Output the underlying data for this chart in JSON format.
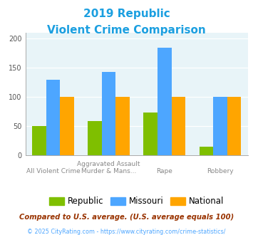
{
  "title_line1": "2019 Republic",
  "title_line2": "Violent Crime Comparison",
  "title_color": "#1B9FE0",
  "cat_labels_top": [
    "",
    "Aggravated Assault",
    "",
    ""
  ],
  "cat_labels_bot": [
    "All Violent Crime",
    "Murder & Mans...",
    "Rape",
    "Robbery"
  ],
  "republic_values": [
    50,
    59,
    73,
    15
  ],
  "missouri_values": [
    130,
    143,
    185,
    100
  ],
  "national_values": [
    100,
    100,
    100,
    100
  ],
  "republic_color": "#7FBF00",
  "missouri_color": "#4DA6FF",
  "national_color": "#FFA500",
  "ylim": [
    0,
    210
  ],
  "yticks": [
    0,
    50,
    100,
    150,
    200
  ],
  "plot_bg_color": "#E8F4F8",
  "fig_bg_color": "#FFFFFF",
  "legend_labels": [
    "Republic",
    "Missouri",
    "National"
  ],
  "footnote1": "Compared to U.S. average. (U.S. average equals 100)",
  "footnote2": "© 2025 CityRating.com - https://www.cityrating.com/crime-statistics/",
  "footnote1_color": "#993300",
  "footnote2_color": "#4DA6FF",
  "bar_width": 0.25
}
